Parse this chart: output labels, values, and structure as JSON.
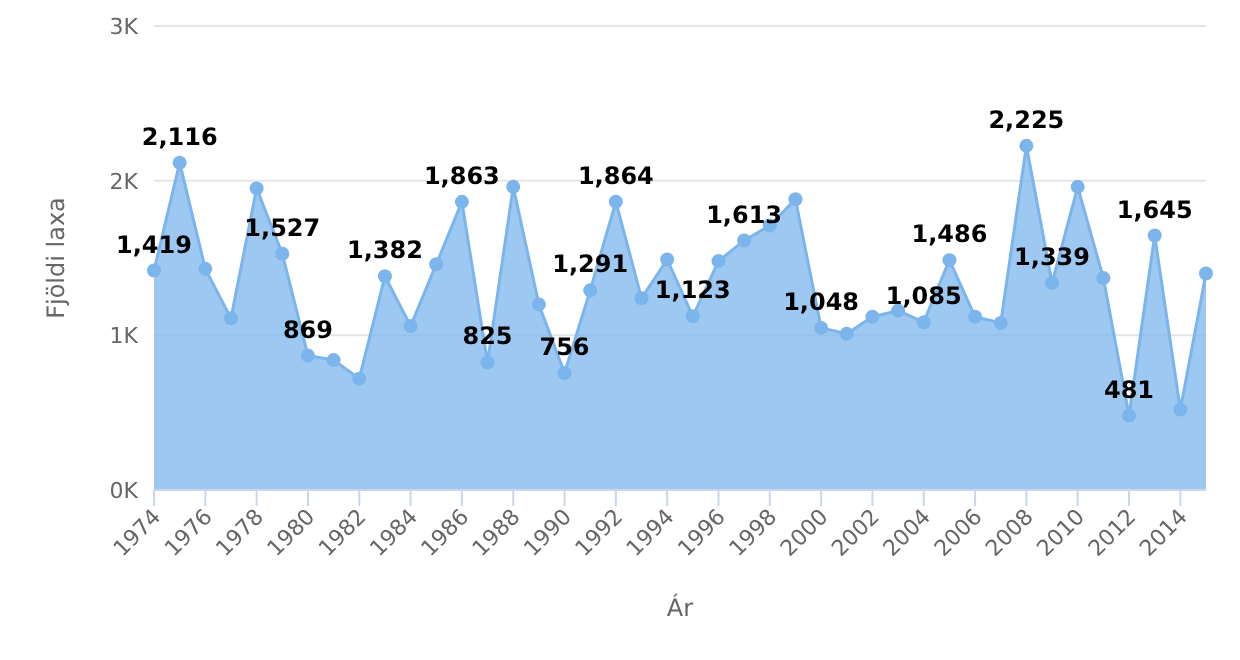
{
  "chart_data": {
    "type": "area",
    "xlabel": "Ár",
    "ylabel": "Fjöldi laxa",
    "x": [
      1974,
      1975,
      1976,
      1977,
      1978,
      1979,
      1980,
      1981,
      1982,
      1983,
      1984,
      1985,
      1986,
      1987,
      1988,
      1989,
      1990,
      1991,
      1992,
      1993,
      1994,
      1995,
      1996,
      1997,
      1998,
      1999,
      2000,
      2001,
      2002,
      2003,
      2004,
      2005,
      2006,
      2007,
      2008,
      2009,
      2010,
      2011,
      2012,
      2013,
      2014,
      2015
    ],
    "series": [
      {
        "color": "#7cb5ec",
        "values": [
          1419,
          2116,
          1430,
          1110,
          1950,
          1527,
          869,
          840,
          720,
          1382,
          1060,
          1460,
          1863,
          825,
          1960,
          1200,
          756,
          1291,
          1864,
          1240,
          1490,
          1123,
          1480,
          1613,
          1710,
          1880,
          1048,
          1010,
          1120,
          1160,
          1085,
          1486,
          1120,
          1080,
          2225,
          1339,
          1960,
          1370,
          481,
          1645,
          520,
          1400
        ],
        "value_labels": [
          "1,419",
          "2,116",
          null,
          null,
          null,
          "1,527",
          "869",
          null,
          null,
          "1,382",
          null,
          null,
          "1,863",
          "825",
          null,
          null,
          "756",
          "1,291",
          "1,864",
          null,
          null,
          "1,123",
          null,
          "1,613",
          null,
          null,
          "1,048",
          null,
          null,
          null,
          "1,085",
          "1,486",
          null,
          null,
          "2,225",
          "1,339",
          null,
          null,
          "481",
          "1,645",
          null,
          null
        ]
      }
    ],
    "xlim": [
      1974,
      2015
    ],
    "xticks": [
      1974,
      1976,
      1978,
      1980,
      1982,
      1984,
      1986,
      1988,
      1990,
      1992,
      1994,
      1996,
      1998,
      2000,
      2002,
      2004,
      2006,
      2008,
      2010,
      2012,
      2014
    ],
    "ylim": [
      0,
      3000
    ],
    "yticks": [
      {
        "value": 0,
        "label": "0K"
      },
      {
        "value": 1000,
        "label": "1K"
      },
      {
        "value": 2000,
        "label": "2K"
      },
      {
        "value": 3000,
        "label": "3K"
      }
    ],
    "grid": "y",
    "marker": "circle"
  }
}
